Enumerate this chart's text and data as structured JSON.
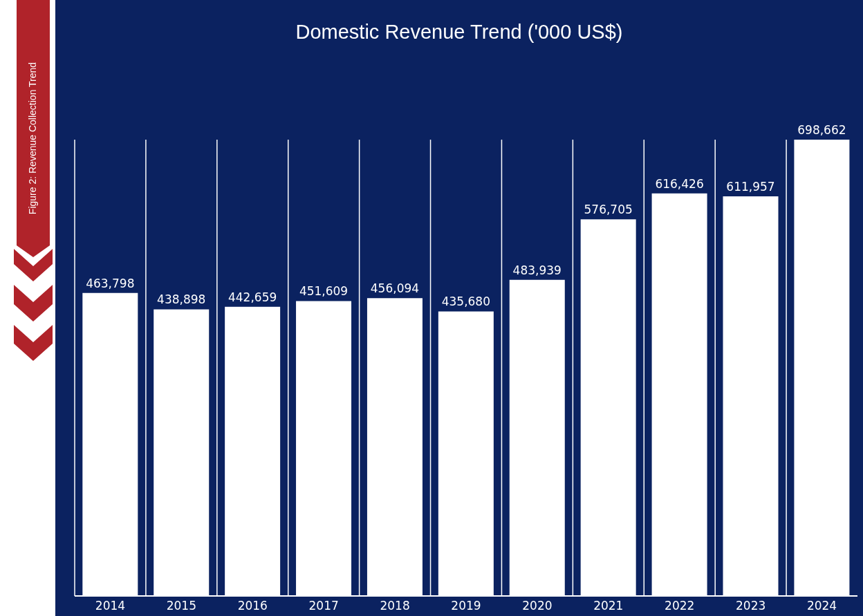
{
  "chart_data": {
    "type": "bar",
    "title": "Domestic Revenue Trend ('000 US$)",
    "categories": [
      "2014",
      "2015",
      "2016",
      "2017",
      "2018",
      "2019",
      "2020",
      "2021",
      "2022",
      "2023",
      "2024"
    ],
    "values": [
      463798,
      438898,
      442659,
      451609,
      456094,
      435680,
      483939,
      576705,
      616426,
      611957,
      698662
    ],
    "color": "#ffffff",
    "value_labels": [
      "463,798",
      "438,898",
      "442,659",
      "451,609",
      "456,094",
      "435,680",
      "483,939",
      "576,705",
      "616,426",
      "611,957",
      "698,662"
    ],
    "grid": "x",
    "tick_labels": "x",
    "annotations": [
      "Figure 2:  Revenue Collection Trend"
    ]
  }
}
